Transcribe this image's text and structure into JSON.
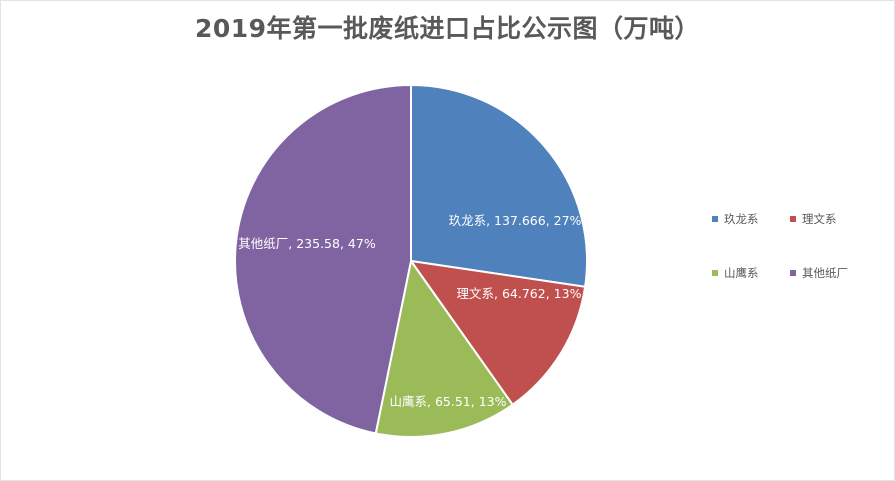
{
  "chart_data": {
    "type": "pie",
    "title": "2019年第一批废纸进口占比公示图（万吨）",
    "slices": [
      {
        "name": "玖龙系",
        "value": 137.666,
        "percent": "27%",
        "label": "玖龙系, 137.666, 27%",
        "color": "#4f81bd"
      },
      {
        "name": "理文系",
        "value": 64.762,
        "percent": "13%",
        "label": "理文系, 64.762, 13%",
        "color": "#c0504d"
      },
      {
        "name": "山鹰系",
        "value": 65.51,
        "percent": "13%",
        "label": "山鹰系, 65.51, 13%",
        "color": "#9bbb59"
      },
      {
        "name": "其他纸厂",
        "value": 235.58,
        "percent": "47%",
        "label": "其他纸厂, 235.58, 47%",
        "color": "#8064a2"
      }
    ],
    "legend": {
      "position": "right",
      "items": [
        "玖龙系",
        "理文系",
        "山鹰系",
        "其他纸厂"
      ]
    }
  }
}
